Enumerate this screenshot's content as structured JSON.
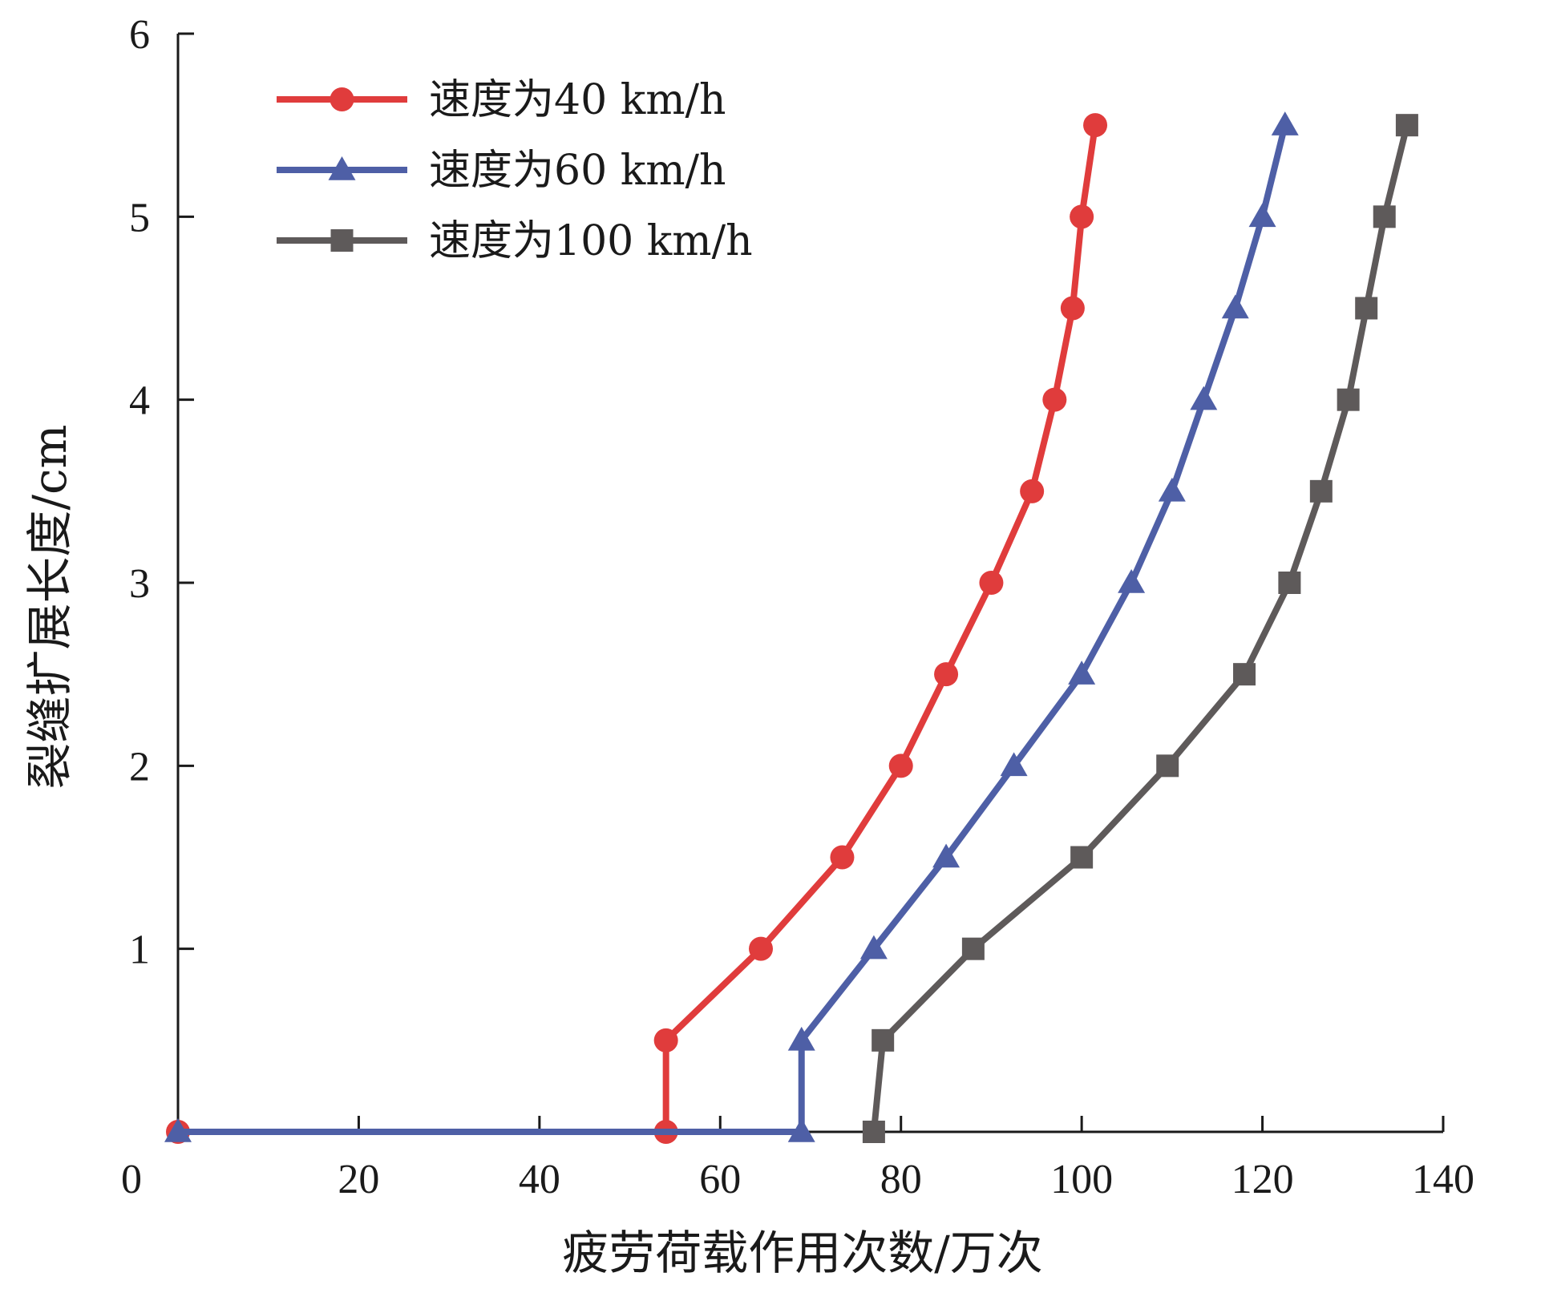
{
  "chart_data": {
    "type": "line",
    "title": "",
    "xlabel": "疲劳荷载作用次数/万次",
    "ylabel": "裂缝扩展长度/cm",
    "xlim": [
      0,
      140
    ],
    "ylim": [
      0,
      6
    ],
    "xticks": [
      20,
      40,
      60,
      80,
      100,
      120,
      140
    ],
    "yticks": [
      1,
      2,
      3,
      4,
      5,
      6
    ],
    "origin_label": "0",
    "grid": false,
    "legend_position": "top-left",
    "series": [
      {
        "name": "速度为40 km/h",
        "color": "#e03c3c",
        "marker": "circle",
        "points": [
          [
            0,
            0
          ],
          [
            54,
            0
          ],
          [
            54,
            0.5
          ],
          [
            64.5,
            1.0
          ],
          [
            73.5,
            1.5
          ],
          [
            80,
            2.0
          ],
          [
            85,
            2.5
          ],
          [
            90,
            3.0
          ],
          [
            94.5,
            3.5
          ],
          [
            97,
            4.0
          ],
          [
            99,
            4.5
          ],
          [
            100,
            5.0
          ],
          [
            101.5,
            5.5
          ]
        ]
      },
      {
        "name": "速度为60 km/h",
        "color": "#4e5fa6",
        "marker": "triangle",
        "points": [
          [
            0,
            0
          ],
          [
            69,
            0
          ],
          [
            69,
            0.5
          ],
          [
            77,
            1.0
          ],
          [
            85,
            1.5
          ],
          [
            92.5,
            2.0
          ],
          [
            100,
            2.5
          ],
          [
            105.5,
            3.0
          ],
          [
            110,
            3.5
          ],
          [
            113.5,
            4.0
          ],
          [
            117,
            4.5
          ],
          [
            120,
            5.0
          ],
          [
            122.5,
            5.5
          ]
        ]
      },
      {
        "name": "速度为100 km/h",
        "color": "#5e5a5a",
        "marker": "square",
        "points": [
          [
            77,
            0
          ],
          [
            78,
            0.5
          ],
          [
            88,
            1.0
          ],
          [
            100,
            1.5
          ],
          [
            109.5,
            2.0
          ],
          [
            118,
            2.5
          ],
          [
            123,
            3.0
          ],
          [
            126.5,
            3.5
          ],
          [
            129.5,
            4.0
          ],
          [
            131.5,
            4.5
          ],
          [
            133.5,
            5.0
          ],
          [
            136,
            5.5
          ]
        ]
      }
    ]
  }
}
